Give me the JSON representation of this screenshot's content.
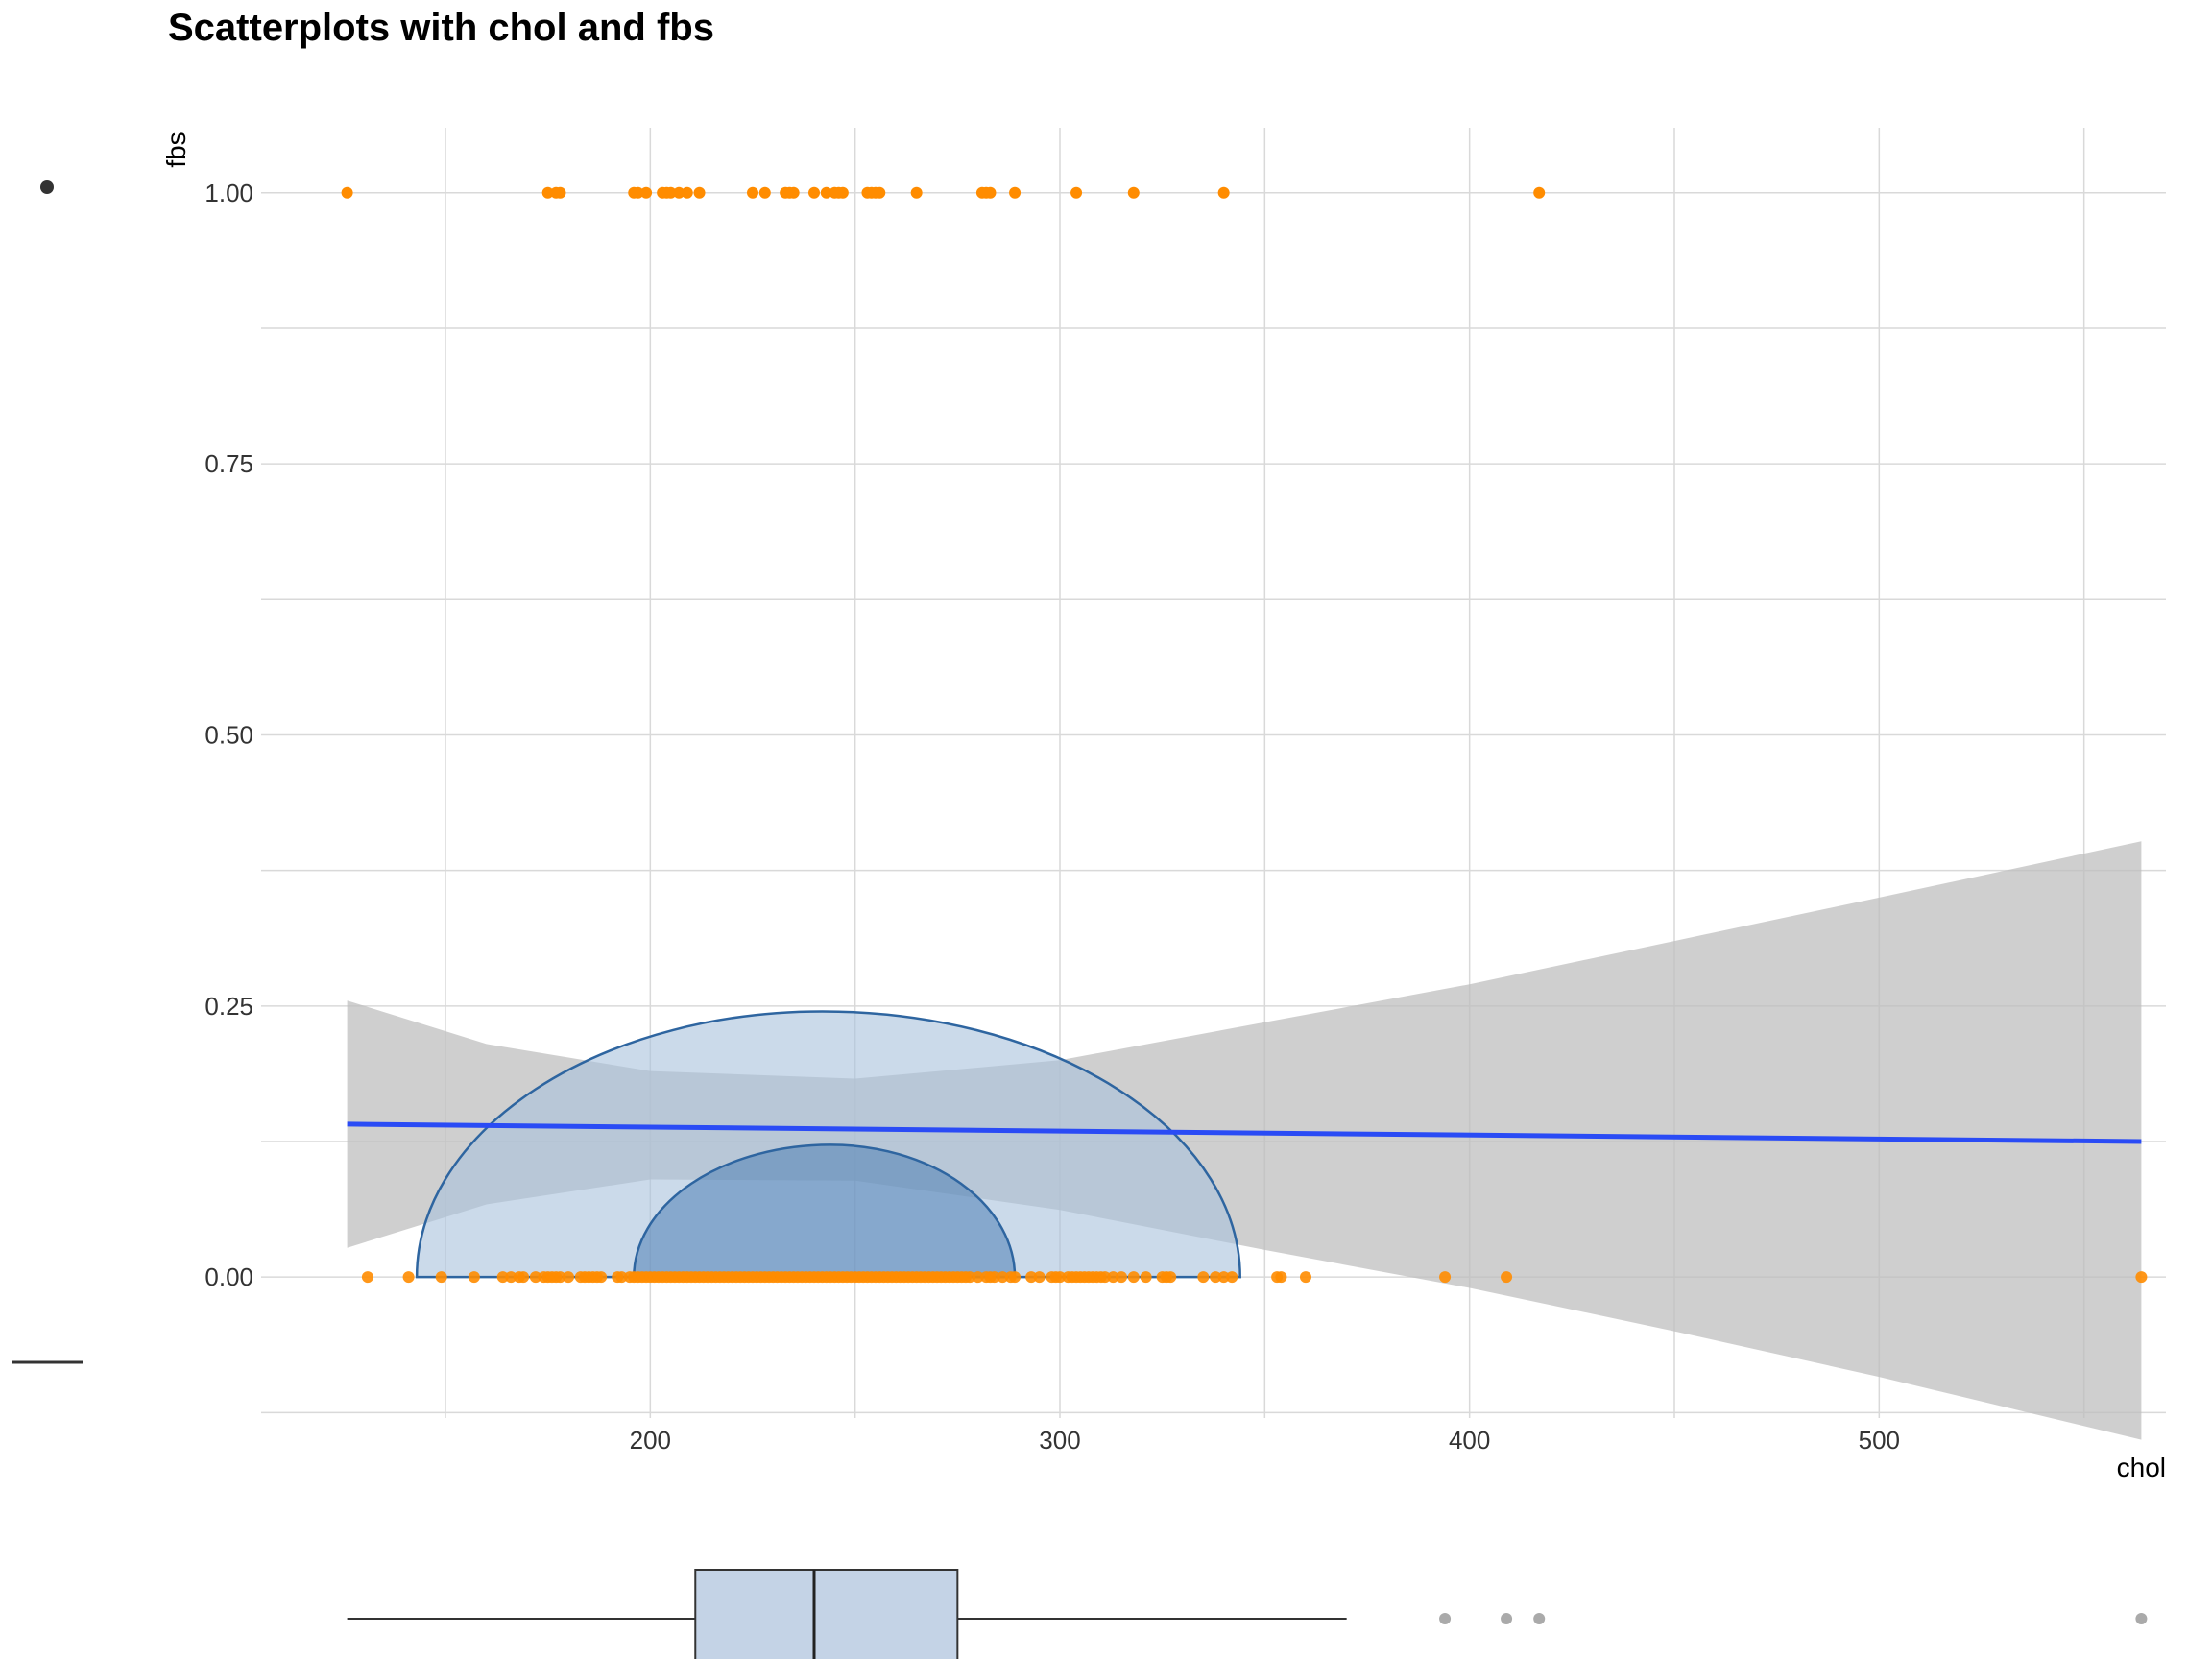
{
  "chart_data": {
    "type": "scatter",
    "title": "Scatterplots with chol and fbs",
    "xlabel": "chol",
    "ylabel": "fbs",
    "xlim": [
      105,
      570
    ],
    "ylim": [
      -0.13,
      1.06
    ],
    "x_ticks": [
      200,
      300,
      400,
      500
    ],
    "x_tick_labels": [
      "200",
      "300",
      "400",
      "500"
    ],
    "x_minor_ticks": [
      150,
      250,
      350,
      450,
      550
    ],
    "y_ticks": [
      0.0,
      0.25,
      0.5,
      0.75,
      1.0
    ],
    "y_tick_labels": [
      "0.00",
      "0.25",
      "0.50",
      "0.75",
      "1.00"
    ],
    "y_minor_ticks": [
      -0.125,
      0.125,
      0.375,
      0.625,
      0.875
    ],
    "grid": true,
    "legend": "none",
    "colors": {
      "points": "#ff8c00",
      "fit_line": "#2a4bf5",
      "confidence_band": "#bdbdbd",
      "density_fill": "#a9c1dc",
      "density_stroke": "#2e65a0",
      "box_fill": "#c4d3e6",
      "outlier": "#aaaaaa",
      "grid": "#d9d9d9"
    },
    "points_fbs_1": [
      126,
      175,
      177,
      178,
      196,
      197,
      199,
      203,
      204,
      205,
      207,
      209,
      212,
      225,
      228,
      233,
      234,
      235,
      240,
      243,
      245,
      246,
      247,
      253,
      254,
      255,
      256,
      265,
      281,
      282,
      283,
      289,
      304,
      318,
      340,
      417
    ],
    "points_fbs_0": [
      131,
      141,
      149,
      157,
      164,
      166,
      168,
      169,
      172,
      174,
      175,
      176,
      177,
      178,
      180,
      183,
      184,
      185,
      186,
      187,
      188,
      192,
      193,
      195,
      196,
      197,
      198,
      199,
      200,
      201,
      202,
      203,
      204,
      205,
      206,
      207,
      208,
      209,
      210,
      211,
      212,
      213,
      214,
      215,
      216,
      217,
      218,
      219,
      220,
      221,
      222,
      223,
      224,
      225,
      226,
      227,
      228,
      229,
      230,
      231,
      232,
      233,
      234,
      235,
      236,
      237,
      238,
      239,
      240,
      241,
      242,
      243,
      244,
      245,
      246,
      247,
      248,
      249,
      250,
      251,
      252,
      253,
      254,
      255,
      256,
      257,
      258,
      259,
      260,
      261,
      262,
      263,
      264,
      265,
      266,
      267,
      268,
      269,
      270,
      271,
      272,
      273,
      274,
      275,
      276,
      277,
      278,
      280,
      282,
      283,
      284,
      286,
      288,
      289,
      293,
      295,
      298,
      299,
      300,
      302,
      303,
      304,
      305,
      306,
      307,
      308,
      309,
      310,
      311,
      313,
      315,
      318,
      321,
      325,
      326,
      327,
      335,
      338,
      340,
      342,
      353,
      354,
      360,
      394,
      409,
      564
    ],
    "fit_line": {
      "x": [
        126,
        564
      ],
      "y": [
        0.141,
        0.125
      ]
    },
    "confidence_band": {
      "x": [
        126,
        160,
        200,
        250,
        300,
        350,
        400,
        450,
        500,
        564
      ],
      "upper": [
        0.255,
        0.215,
        0.19,
        0.183,
        0.2,
        0.235,
        0.27,
        0.31,
        0.35,
        0.402
      ],
      "lower": [
        0.027,
        0.067,
        0.09,
        0.089,
        0.062,
        0.025,
        -0.01,
        -0.05,
        -0.092,
        -0.15
      ]
    },
    "density_outer": {
      "x_min": 143,
      "x_max": 344,
      "x_peak": 242,
      "height": 0.245
    },
    "density_inner": {
      "x_min": 196,
      "x_max": 289,
      "x_peak": 244,
      "height": 0.122
    },
    "boxplot": {
      "whisker_low": 126,
      "q1": 211,
      "median": 240,
      "q3": 275,
      "whisker_high": 370,
      "outliers": [
        394,
        409,
        417,
        564
      ]
    },
    "side_markers": [
      "point",
      "line"
    ]
  }
}
